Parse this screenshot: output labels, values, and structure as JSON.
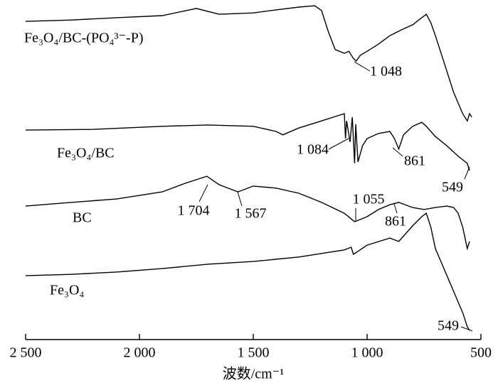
{
  "chart_data": {
    "type": "line",
    "x_label": "波数/cm⁻¹",
    "xlim": [
      2500,
      500
    ],
    "xticks": [
      {
        "value": 2500,
        "label": "2 500"
      },
      {
        "value": 2000,
        "label": "2 000"
      },
      {
        "value": 1500,
        "label": "1 500"
      },
      {
        "value": 1000,
        "label": "1 000"
      },
      500
    ],
    "ylim": [
      0,
      100
    ],
    "series": [
      {
        "name": "Fe₃O₄/BC-(PO₄³⁻-P)",
        "color": "#000000",
        "x": [
          2500,
          2300,
          2100,
          1900,
          1750,
          1650,
          1500,
          1400,
          1300,
          1230,
          1200,
          1170,
          1140,
          1100,
          1080,
          1060,
          1048,
          1030,
          1000,
          950,
          900,
          850,
          800,
          760,
          740,
          720,
          700,
          660,
          620,
          580,
          560,
          550,
          540
        ],
        "values": [
          93.7,
          94.1,
          94.8,
          95.4,
          97.5,
          95.8,
          96.2,
          97.1,
          97.9,
          98.3,
          96.9,
          90.6,
          85.4,
          84.3,
          84.9,
          82.8,
          82.0,
          83.7,
          84.9,
          87.0,
          89.5,
          91.2,
          92.7,
          94.8,
          95.8,
          93.3,
          89.5,
          81.2,
          72.8,
          66.5,
          64.4,
          66.5,
          65.5
        ]
      },
      {
        "name": "Fe₃O₄/BC",
        "color": "#000000",
        "x": [
          2500,
          2200,
          1900,
          1700,
          1500,
          1400,
          1370,
          1300,
          1200,
          1130,
          1100,
          1095,
          1090,
          1075,
          1065,
          1055,
          1050,
          1040,
          1020,
          1000,
          950,
          900,
          880,
          861,
          840,
          800,
          760,
          740,
          700,
          650,
          600,
          560,
          550
        ],
        "values": [
          61.7,
          61.9,
          62.8,
          63.2,
          62.8,
          61.3,
          60.3,
          62.3,
          64.4,
          65.9,
          66.5,
          59.2,
          64.4,
          58.2,
          65.5,
          51.9,
          63.4,
          52.3,
          57.1,
          59.2,
          60.7,
          61.3,
          59.2,
          56.1,
          60.3,
          62.8,
          64.0,
          62.8,
          59.8,
          57.1,
          54.0,
          51.9,
          49.8
        ]
      },
      {
        "name": "BC",
        "color": "#000000",
        "x": [
          2500,
          2300,
          2100,
          1900,
          1800,
          1704,
          1650,
          1567,
          1500,
          1400,
          1300,
          1200,
          1100,
          1055,
          1000,
          950,
          900,
          861,
          800,
          750,
          700,
          650,
          620,
          600,
          580,
          560,
          550
        ],
        "values": [
          39.3,
          40.4,
          41.4,
          43.5,
          46.0,
          48.1,
          45.6,
          43.5,
          45.2,
          44.6,
          43.1,
          40.4,
          37.2,
          34.7,
          36.2,
          38.3,
          39.7,
          40.4,
          38.9,
          38.3,
          38.9,
          39.3,
          38.9,
          37.2,
          33.1,
          26.8,
          28.9
        ]
      },
      {
        "name": "Fe₃O₄",
        "color": "#000000",
        "x": [
          2500,
          2300,
          2100,
          1900,
          1700,
          1500,
          1300,
          1100,
          1070,
          1060,
          1000,
          900,
          861,
          800,
          760,
          740,
          720,
          700,
          660,
          620,
          580,
          560,
          550
        ],
        "values": [
          18.8,
          19.2,
          19.9,
          20.9,
          22.2,
          23.0,
          24.3,
          26.4,
          27.2,
          25.1,
          27.8,
          29.9,
          28.9,
          33.5,
          36.2,
          37.2,
          33.1,
          26.8,
          20.5,
          14.2,
          7.9,
          3.8,
          2.7
        ]
      }
    ],
    "annotations": [
      {
        "label": "1 048",
        "x": 1048
      },
      {
        "label": "1 084",
        "x": 1084
      },
      {
        "label": "861",
        "x": 861
      },
      {
        "label": "549",
        "x": 549
      },
      {
        "label": "1 704",
        "x": 1704
      },
      {
        "label": "1 567",
        "x": 1567
      },
      {
        "label": "1 055",
        "x": 1055
      },
      {
        "label": "861",
        "x": 861
      },
      {
        "label": "549",
        "x": 549
      }
    ]
  }
}
